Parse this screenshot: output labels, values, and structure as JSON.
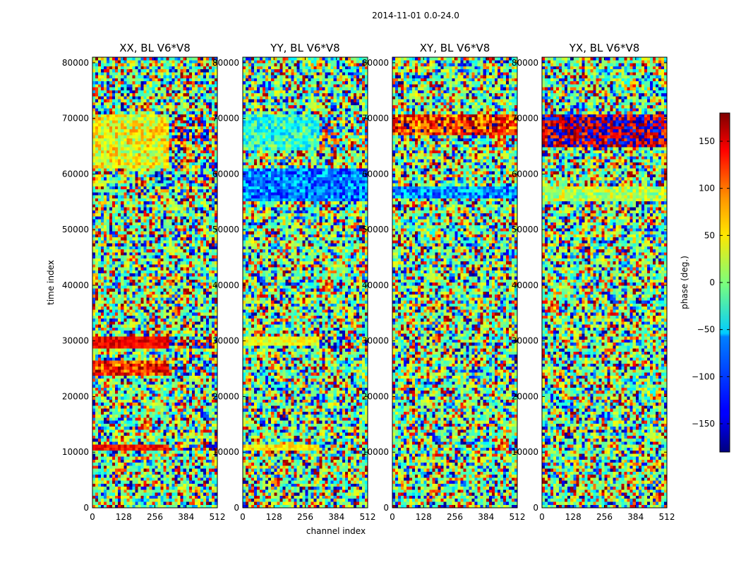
{
  "suptitle": "2014-11-01 0.0-24.0",
  "chart_data": [
    {
      "type": "heatmap",
      "title": "XX, BL V6*V8",
      "xlabel": "",
      "ylabel": "time index",
      "xlim": [
        0,
        512
      ],
      "ylim": [
        0,
        81000
      ],
      "xticks": [
        "0",
        "128",
        "256",
        "384",
        "512"
      ],
      "yticks": [
        "0",
        "10000",
        "20000",
        "30000",
        "40000",
        "50000",
        "60000",
        "70000",
        "80000"
      ],
      "bands": [
        {
          "from": 61000,
          "to": 70500,
          "mean": 40,
          "spread": 50,
          "split": 0.62,
          "mean2": 90,
          "spread2": 160
        },
        {
          "from": 28500,
          "to": 30800,
          "mean": 140,
          "spread": 25,
          "split": 0.62,
          "mean2": 0,
          "spread2": 180
        },
        {
          "from": 24000,
          "to": 26500,
          "mean": 120,
          "spread": 60,
          "split": 0.62,
          "mean2": 0,
          "spread2": 180
        },
        {
          "from": 10500,
          "to": 11500,
          "mean": 130,
          "spread": 30,
          "split": 0.62,
          "mean2": 0,
          "spread2": 180
        }
      ]
    },
    {
      "type": "heatmap",
      "title": "YY, BL V6*V8",
      "xlabel": "channel index",
      "ylabel": "",
      "xlim": [
        0,
        512
      ],
      "ylim": [
        0,
        81000
      ],
      "xticks": [
        "0",
        "128",
        "256",
        "384",
        "512"
      ],
      "yticks": [
        "0",
        "10000",
        "20000",
        "30000",
        "40000",
        "50000",
        "60000",
        "70000",
        "80000"
      ],
      "bands": [
        {
          "from": 64000,
          "to": 70500,
          "mean": -30,
          "spread": 50,
          "split": 0.62,
          "mean2": 0,
          "spread2": 170
        },
        {
          "from": 55000,
          "to": 61000,
          "mean": -90,
          "spread": 50,
          "split": 1.0,
          "mean2": 0,
          "spread2": 180
        },
        {
          "from": 29000,
          "to": 30800,
          "mean": 40,
          "spread": 25,
          "split": 0.62,
          "mean2": 0,
          "spread2": 180
        },
        {
          "from": 10500,
          "to": 11500,
          "mean": 50,
          "spread": 30,
          "split": 0.62,
          "mean2": 0,
          "spread2": 180
        }
      ]
    },
    {
      "type": "heatmap",
      "title": "XY, BL V6*V8",
      "xlabel": "",
      "ylabel": "",
      "xlim": [
        0,
        512
      ],
      "ylim": [
        0,
        81000
      ],
      "xticks": [
        "0",
        "128",
        "256",
        "384",
        "512"
      ],
      "yticks": [
        "0",
        "10000",
        "20000",
        "30000",
        "40000",
        "50000",
        "60000",
        "70000",
        "80000"
      ],
      "bands": [
        {
          "from": 67000,
          "to": 70500,
          "mean": 120,
          "spread": 70,
          "split": 1.0,
          "mean2": 0,
          "spread2": 180
        },
        {
          "from": 55500,
          "to": 58000,
          "mean": -80,
          "spread": 50,
          "split": 1.0,
          "mean2": 0,
          "spread2": 180
        }
      ]
    },
    {
      "type": "heatmap",
      "title": "YX, BL V6*V8",
      "xlabel": "",
      "ylabel": "",
      "xlim": [
        0,
        512
      ],
      "ylim": [
        0,
        81000
      ],
      "xticks": [
        "0",
        "128",
        "256",
        "384",
        "512"
      ],
      "yticks": [
        "0",
        "10000",
        "20000",
        "30000",
        "40000",
        "50000",
        "60000",
        "70000",
        "80000"
      ],
      "bands": [
        {
          "from": 65000,
          "to": 70500,
          "mean": 175,
          "spread": 80,
          "split": 1.0,
          "mean2": 0,
          "spread2": 180
        },
        {
          "from": 55000,
          "to": 58000,
          "mean": 20,
          "spread": 40,
          "split": 1.0,
          "mean2": 0,
          "spread2": 180
        }
      ]
    }
  ],
  "colorbar": {
    "label": "phase (deg.)",
    "range": [
      -180,
      180
    ],
    "ticks": [
      "150",
      "100",
      "50",
      "0",
      "−50",
      "−100",
      "−150"
    ],
    "tick_values": [
      150,
      100,
      50,
      0,
      -50,
      -100,
      -150
    ]
  }
}
